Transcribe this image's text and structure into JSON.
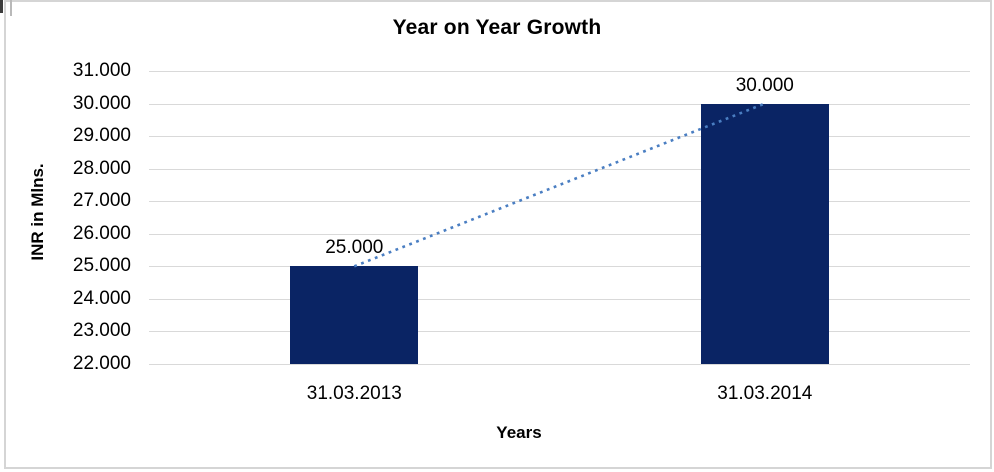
{
  "chart_data": {
    "type": "bar",
    "title": "Year on Year Growth",
    "xlabel": "Years",
    "ylabel": "INR in Mlns.",
    "categories": [
      "31.03.2013",
      "31.03.2014"
    ],
    "values": [
      25000,
      30000
    ],
    "data_labels": [
      "25.000",
      "30.000"
    ],
    "ylim": [
      22000,
      31000
    ],
    "ytick_step": 1000,
    "yticks": [
      {
        "value": 31000,
        "label": "31.000"
      },
      {
        "value": 30000,
        "label": "30.000"
      },
      {
        "value": 29000,
        "label": "29.000"
      },
      {
        "value": 28000,
        "label": "28.000"
      },
      {
        "value": 27000,
        "label": "27.000"
      },
      {
        "value": 26000,
        "label": "26.000"
      },
      {
        "value": 25000,
        "label": "25.000"
      },
      {
        "value": 24000,
        "label": "24.000"
      },
      {
        "value": 23000,
        "label": "23.000"
      },
      {
        "value": 22000,
        "label": "22.000"
      }
    ],
    "grid": true,
    "legend": "none",
    "trendline": {
      "style": "dotted",
      "from": 0,
      "to": 1
    },
    "colors": {
      "bar": "#0a2464",
      "trend": "#4a7ec2",
      "grid": "#d9d9d9",
      "border": "#d5d5d5",
      "text": "#000000"
    }
  }
}
